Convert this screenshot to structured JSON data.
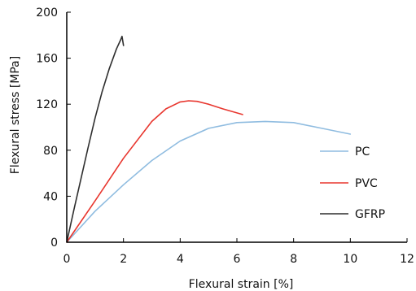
{
  "chart_data": {
    "type": "line",
    "xlabel": "Flexural strain [%]",
    "ylabel": "Flexural stress [MPa]",
    "xlim": [
      0,
      12
    ],
    "ylim": [
      0,
      200
    ],
    "x_ticks": [
      0,
      2,
      4,
      6,
      8,
      10,
      12
    ],
    "y_ticks": [
      0,
      40,
      80,
      120,
      160,
      200
    ],
    "x_tick_labels": [
      "0",
      "2",
      "4",
      "6",
      "8",
      "10",
      "12"
    ],
    "y_tick_labels": [
      "0",
      "40",
      "80",
      "120",
      "160",
      "200"
    ],
    "grid": false,
    "legend_position": "right",
    "series": [
      {
        "name": "PC",
        "color": "#8fbce0",
        "x": [
          0,
          1,
          2,
          3,
          4,
          5,
          6,
          7,
          8,
          9,
          10
        ],
        "y": [
          0,
          27,
          50,
          71,
          88,
          99,
          104,
          105,
          104,
          99,
          94
        ]
      },
      {
        "name": "PVC",
        "color": "#e8362e",
        "x": [
          0,
          1,
          2,
          3,
          3.5,
          4,
          4.3,
          4.6,
          5,
          5.5,
          6.2
        ],
        "y": [
          0,
          36,
          73,
          105,
          116,
          122,
          123,
          122.5,
          120,
          116,
          111
        ]
      },
      {
        "name": "GFRP",
        "color": "#2f2f2f",
        "x": [
          0,
          0.25,
          0.5,
          0.75,
          1,
          1.25,
          1.5,
          1.75,
          1.9,
          1.95,
          2.0
        ],
        "y": [
          0,
          28,
          55,
          82,
          108,
          131,
          151,
          168,
          176,
          179,
          171
        ]
      }
    ]
  }
}
